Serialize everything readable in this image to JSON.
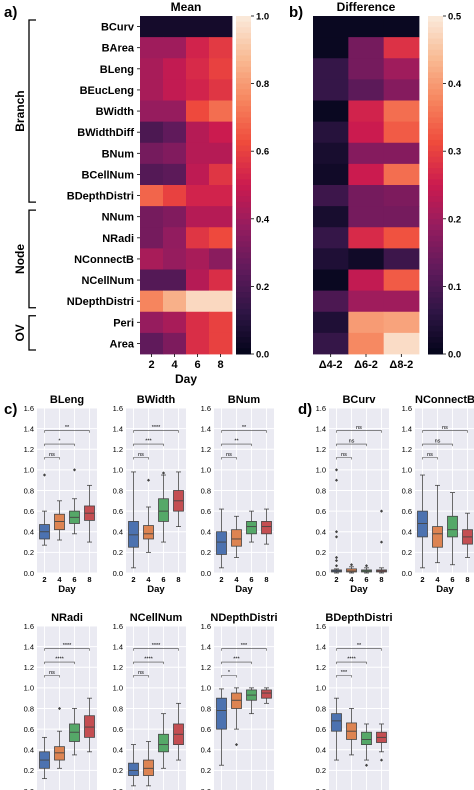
{
  "panel_labels": {
    "a": "a)",
    "b": "b)",
    "c": "c)",
    "d": "d)"
  },
  "colormap": [
    "#03051a",
    "#2f1545",
    "#601a5b",
    "#941c5f",
    "#cb1b4f",
    "#ef4b3c",
    "#f6855e",
    "#f9bb94",
    "#faebdd"
  ],
  "box_colors": [
    "#4c72b0",
    "#dd8452",
    "#55a868",
    "#c44e52"
  ],
  "groups": [
    {
      "label": "Branch",
      "first": 0,
      "last": 8
    },
    {
      "label": "Node",
      "first": 9,
      "last": 13
    },
    {
      "label": "OV",
      "first": 14,
      "last": 15
    }
  ],
  "chart_data": [
    {
      "type": "heatmap",
      "title": "Mean",
      "xlabel": "Day",
      "x": [
        "2",
        "4",
        "6",
        "8"
      ],
      "y": [
        "BCurv",
        "BArea",
        "BLeng",
        "BEucLeng",
        "BWidth",
        "BWidthDiff",
        "BNum",
        "BCellNum",
        "BDepthDistri",
        "NNum",
        "NRadi",
        "NConnectB",
        "NCellNum",
        "NDepthDistri",
        "Peri",
        "Area"
      ],
      "zlim": [
        0.0,
        1.0
      ],
      "colorbar_ticks": [
        "0.0",
        "0.2",
        "0.4",
        "0.6",
        "0.8",
        "1.0"
      ],
      "values": [
        [
          0.05,
          0.05,
          0.05,
          0.05
        ],
        [
          0.4,
          0.4,
          0.52,
          0.58
        ],
        [
          0.42,
          0.48,
          0.54,
          0.6
        ],
        [
          0.42,
          0.48,
          0.52,
          0.57
        ],
        [
          0.38,
          0.38,
          0.62,
          0.7
        ],
        [
          0.2,
          0.25,
          0.45,
          0.5
        ],
        [
          0.3,
          0.33,
          0.45,
          0.45
        ],
        [
          0.22,
          0.24,
          0.47,
          0.57
        ],
        [
          0.68,
          0.6,
          0.52,
          0.52
        ],
        [
          0.3,
          0.33,
          0.45,
          0.45
        ],
        [
          0.3,
          0.37,
          0.57,
          0.62
        ],
        [
          0.42,
          0.38,
          0.42,
          0.35
        ],
        [
          0.22,
          0.22,
          0.45,
          0.55
        ],
        [
          0.75,
          0.85,
          0.95,
          0.95
        ],
        [
          0.38,
          0.42,
          0.55,
          0.6
        ],
        [
          0.25,
          0.32,
          0.55,
          0.6
        ]
      ]
    },
    {
      "type": "heatmap",
      "title": "Difference",
      "x": [
        "Δ4-2",
        "Δ6-2",
        "Δ8-2"
      ],
      "zlim": [
        0.0,
        0.5
      ],
      "colorbar_ticks": [
        "0.0",
        "0.1",
        "0.2",
        "0.3",
        "0.4",
        "0.5"
      ],
      "values": [
        [
          0.01,
          0.01,
          0.01
        ],
        [
          0.01,
          0.15,
          0.28
        ],
        [
          0.07,
          0.15,
          0.2
        ],
        [
          0.07,
          0.12,
          0.17
        ],
        [
          0.01,
          0.26,
          0.35
        ],
        [
          0.05,
          0.25,
          0.33
        ],
        [
          0.03,
          0.17,
          0.17
        ],
        [
          0.02,
          0.25,
          0.35
        ],
        [
          0.08,
          0.15,
          0.16
        ],
        [
          0.03,
          0.15,
          0.15
        ],
        [
          0.07,
          0.27,
          0.32
        ],
        [
          0.04,
          0.02,
          0.08
        ],
        [
          0.01,
          0.24,
          0.33
        ],
        [
          0.1,
          0.2,
          0.2
        ],
        [
          0.04,
          0.4,
          0.41
        ],
        [
          0.07,
          0.38,
          0.48
        ]
      ]
    },
    {
      "type": "box",
      "panel": "c",
      "title": "BLeng",
      "categories": [
        "2",
        "4",
        "6",
        "8"
      ],
      "xlabel": "Day",
      "ylim": [
        0.0,
        1.6
      ],
      "yticks": [
        "0.0",
        "0.2",
        "0.4",
        "0.6",
        "0.8",
        "1.0",
        "1.2",
        "1.4",
        "1.6"
      ],
      "boxes": [
        {
          "whislo": 0.27,
          "q1": 0.33,
          "med": 0.4,
          "q3": 0.47,
          "whishi": 0.6,
          "fliers": [
            0.95
          ]
        },
        {
          "whislo": 0.32,
          "q1": 0.42,
          "med": 0.5,
          "q3": 0.57,
          "whishi": 0.7,
          "fliers": []
        },
        {
          "whislo": 0.38,
          "q1": 0.48,
          "med": 0.54,
          "q3": 0.6,
          "whishi": 0.72,
          "fliers": [
            1.0
          ]
        },
        {
          "whislo": 0.3,
          "q1": 0.51,
          "med": 0.58,
          "q3": 0.65,
          "whishi": 0.85,
          "fliers": []
        }
      ],
      "annotations": [
        {
          "from": 0,
          "to": 1,
          "text": "ns"
        },
        {
          "from": 0,
          "to": 2,
          "text": "*"
        },
        {
          "from": 0,
          "to": 3,
          "text": "**"
        }
      ]
    },
    {
      "type": "box",
      "panel": "c",
      "title": "BWidth",
      "categories": [
        "2",
        "4",
        "6",
        "8"
      ],
      "xlabel": "Day",
      "ylim": [
        0.0,
        1.6
      ],
      "yticks": [
        "0.0",
        "0.2",
        "0.4",
        "0.6",
        "0.8",
        "1.0",
        "1.2",
        "1.4",
        "1.6"
      ],
      "boxes": [
        {
          "whislo": 0.05,
          "q1": 0.25,
          "med": 0.37,
          "q3": 0.5,
          "whishi": 0.98,
          "fliers": []
        },
        {
          "whislo": 0.2,
          "q1": 0.33,
          "med": 0.38,
          "q3": 0.46,
          "whishi": 0.64,
          "fliers": [
            0.9
          ]
        },
        {
          "whislo": 0.3,
          "q1": 0.5,
          "med": 0.6,
          "q3": 0.72,
          "whishi": 0.95,
          "fliers": [
            0.97
          ]
        },
        {
          "whislo": 0.45,
          "q1": 0.6,
          "med": 0.7,
          "q3": 0.8,
          "whishi": 0.98,
          "fliers": []
        }
      ],
      "annotations": [
        {
          "from": 0,
          "to": 1,
          "text": "ns"
        },
        {
          "from": 0,
          "to": 2,
          "text": "***"
        },
        {
          "from": 0,
          "to": 3,
          "text": "****"
        }
      ]
    },
    {
      "type": "box",
      "panel": "c",
      "title": "BNum",
      "categories": [
        "2",
        "4",
        "6",
        "8"
      ],
      "xlabel": "Day",
      "ylim": [
        0.0,
        1.6
      ],
      "yticks": [
        "0.0",
        "0.2",
        "0.4",
        "0.6",
        "0.8",
        "1.0",
        "1.2",
        "1.4",
        "1.6"
      ],
      "boxes": [
        {
          "whislo": 0.05,
          "q1": 0.18,
          "med": 0.3,
          "q3": 0.4,
          "whishi": 0.62,
          "fliers": []
        },
        {
          "whislo": 0.15,
          "q1": 0.26,
          "med": 0.33,
          "q3": 0.42,
          "whishi": 0.55,
          "fliers": []
        },
        {
          "whislo": 0.3,
          "q1": 0.38,
          "med": 0.45,
          "q3": 0.5,
          "whishi": 0.6,
          "fliers": []
        },
        {
          "whislo": 0.28,
          "q1": 0.38,
          "med": 0.45,
          "q3": 0.5,
          "whishi": 0.62,
          "fliers": []
        }
      ],
      "annotations": [
        {
          "from": 0,
          "to": 1,
          "text": "ns"
        },
        {
          "from": 0,
          "to": 2,
          "text": "**"
        },
        {
          "from": 0,
          "to": 3,
          "text": "**"
        }
      ]
    },
    {
      "type": "box",
      "panel": "d",
      "title": "BCurv",
      "categories": [
        "2",
        "4",
        "6",
        "8"
      ],
      "xlabel": "Day",
      "ylim": [
        0.0,
        1.6
      ],
      "yticks": [
        "0.0",
        "0.2",
        "0.4",
        "0.6",
        "0.8",
        "1.0",
        "1.2",
        "1.4",
        "1.6"
      ],
      "boxes": [
        {
          "whislo": 0.0,
          "q1": 0.01,
          "med": 0.02,
          "q3": 0.03,
          "whishi": 0.04,
          "fliers": [
            0.07,
            0.12,
            0.15,
            0.35,
            0.4,
            0.9,
            1.0
          ]
        },
        {
          "whislo": 0.0,
          "q1": 0.01,
          "med": 0.02,
          "q3": 0.04,
          "whishi": 0.06,
          "fliers": [
            0.08
          ]
        },
        {
          "whislo": 0.0,
          "q1": 0.01,
          "med": 0.02,
          "q3": 0.03,
          "whishi": 0.05,
          "fliers": [
            0.07
          ]
        },
        {
          "whislo": 0.0,
          "q1": 0.01,
          "med": 0.02,
          "q3": 0.03,
          "whishi": 0.05,
          "fliers": [
            0.3,
            0.6
          ]
        }
      ],
      "annotations": [
        {
          "from": 0,
          "to": 1,
          "text": "ns"
        },
        {
          "from": 0,
          "to": 2,
          "text": "ns"
        },
        {
          "from": 0,
          "to": 3,
          "text": "ns"
        }
      ]
    },
    {
      "type": "box",
      "panel": "d",
      "title": "NConnectB",
      "categories": [
        "2",
        "4",
        "6",
        "8"
      ],
      "xlabel": "Day",
      "ylim": [
        0.0,
        1.6
      ],
      "yticks": [
        "0.0",
        "0.2",
        "0.4",
        "0.6",
        "0.8",
        "1.0",
        "1.2",
        "1.4",
        "1.6"
      ],
      "boxes": [
        {
          "whislo": 0.05,
          "q1": 0.35,
          "med": 0.48,
          "q3": 0.6,
          "whishi": 0.95,
          "fliers": []
        },
        {
          "whislo": 0.1,
          "q1": 0.25,
          "med": 0.38,
          "q3": 0.45,
          "whishi": 0.85,
          "fliers": []
        },
        {
          "whislo": 0.08,
          "q1": 0.35,
          "med": 0.42,
          "q3": 0.55,
          "whishi": 0.78,
          "fliers": []
        },
        {
          "whislo": 0.15,
          "q1": 0.28,
          "med": 0.35,
          "q3": 0.42,
          "whishi": 0.58,
          "fliers": []
        }
      ],
      "annotations": [
        {
          "from": 0,
          "to": 1,
          "text": "ns"
        },
        {
          "from": 0,
          "to": 2,
          "text": "ns"
        },
        {
          "from": 0,
          "to": 3,
          "text": "ns"
        }
      ]
    },
    {
      "type": "box",
      "panel": "c",
      "title": "NRadi",
      "categories": [
        "2",
        "4",
        "6",
        "8"
      ],
      "xlabel": "Day",
      "ylim": [
        0.0,
        1.6
      ],
      "yticks": [
        "0.0",
        "0.2",
        "0.4",
        "0.6",
        "0.8",
        "1.0",
        "1.2",
        "1.4",
        "1.6"
      ],
      "boxes": [
        {
          "whislo": 0.12,
          "q1": 0.22,
          "med": 0.3,
          "q3": 0.38,
          "whishi": 0.52,
          "fliers": []
        },
        {
          "whislo": 0.22,
          "q1": 0.3,
          "med": 0.37,
          "q3": 0.43,
          "whishi": 0.58,
          "fliers": [
            0.8
          ]
        },
        {
          "whislo": 0.35,
          "q1": 0.48,
          "med": 0.57,
          "q3": 0.65,
          "whishi": 0.8,
          "fliers": []
        },
        {
          "whislo": 0.38,
          "q1": 0.52,
          "med": 0.62,
          "q3": 0.73,
          "whishi": 0.9,
          "fliers": []
        }
      ],
      "annotations": [
        {
          "from": 0,
          "to": 1,
          "text": "ns"
        },
        {
          "from": 0,
          "to": 2,
          "text": "****"
        },
        {
          "from": 0,
          "to": 3,
          "text": "****"
        }
      ]
    },
    {
      "type": "box",
      "panel": "c",
      "title": "NCellNum",
      "categories": [
        "2",
        "4",
        "6",
        "8"
      ],
      "xlabel": "Day",
      "ylim": [
        0.0,
        1.6
      ],
      "yticks": [
        "0.0",
        "0.2",
        "0.4",
        "0.6",
        "0.8",
        "1.0",
        "1.2",
        "1.4",
        "1.6"
      ],
      "boxes": [
        {
          "whislo": 0.05,
          "q1": 0.15,
          "med": 0.2,
          "q3": 0.27,
          "whishi": 0.45,
          "fliers": []
        },
        {
          "whislo": 0.05,
          "q1": 0.15,
          "med": 0.22,
          "q3": 0.3,
          "whishi": 0.48,
          "fliers": []
        },
        {
          "whislo": 0.22,
          "q1": 0.38,
          "med": 0.45,
          "q3": 0.55,
          "whishi": 0.75,
          "fliers": []
        },
        {
          "whislo": 0.3,
          "q1": 0.45,
          "med": 0.55,
          "q3": 0.65,
          "whishi": 0.85,
          "fliers": []
        }
      ],
      "annotations": [
        {
          "from": 0,
          "to": 1,
          "text": "ns"
        },
        {
          "from": 0,
          "to": 2,
          "text": "****"
        },
        {
          "from": 0,
          "to": 3,
          "text": "****"
        }
      ]
    },
    {
      "type": "box",
      "panel": "c",
      "title": "NDepthDistri",
      "categories": [
        "2",
        "4",
        "6",
        "8"
      ],
      "xlabel": "Day",
      "ylim": [
        0.0,
        1.6
      ],
      "yticks": [
        "0.0",
        "0.2",
        "0.4",
        "0.6",
        "0.8",
        "1.0",
        "1.2",
        "1.4",
        "1.6"
      ],
      "boxes": [
        {
          "whislo": 0.25,
          "q1": 0.6,
          "med": 0.78,
          "q3": 0.9,
          "whishi": 0.99,
          "fliers": []
        },
        {
          "whislo": 0.6,
          "q1": 0.8,
          "med": 0.88,
          "q3": 0.95,
          "whishi": 1.0,
          "fliers": [
            0.45
          ]
        },
        {
          "whislo": 0.75,
          "q1": 0.88,
          "med": 0.93,
          "q3": 0.98,
          "whishi": 1.0,
          "fliers": []
        },
        {
          "whislo": 0.85,
          "q1": 0.9,
          "med": 0.95,
          "q3": 0.98,
          "whishi": 1.0,
          "fliers": []
        }
      ],
      "annotations": [
        {
          "from": 0,
          "to": 1,
          "text": "*"
        },
        {
          "from": 0,
          "to": 2,
          "text": "***"
        },
        {
          "from": 0,
          "to": 3,
          "text": "***"
        }
      ]
    },
    {
      "type": "box",
      "panel": "d",
      "title": "BDepthDistri",
      "categories": [
        "2",
        "4",
        "6",
        "8"
      ],
      "xlabel": "",
      "ylim": [
        0.0,
        1.6
      ],
      "yticks": [
        "0.0",
        "0.2",
        "0.4",
        "0.6",
        "0.8",
        "1.0",
        "1.2",
        "1.4",
        "1.6"
      ],
      "boxes": [
        {
          "whislo": 0.3,
          "q1": 0.58,
          "med": 0.68,
          "q3": 0.75,
          "whishi": 0.9,
          "fliers": []
        },
        {
          "whislo": 0.35,
          "q1": 0.5,
          "med": 0.58,
          "q3": 0.66,
          "whishi": 0.8,
          "fliers": []
        },
        {
          "whislo": 0.3,
          "q1": 0.45,
          "med": 0.5,
          "q3": 0.57,
          "whishi": 0.65,
          "fliers": [
            0.25
          ]
        },
        {
          "whislo": 0.38,
          "q1": 0.47,
          "med": 0.52,
          "q3": 0.57,
          "whishi": 0.65,
          "fliers": [
            0.3
          ]
        }
      ],
      "annotations": [
        {
          "from": 0,
          "to": 1,
          "text": "***"
        },
        {
          "from": 0,
          "to": 2,
          "text": "****"
        },
        {
          "from": 0,
          "to": 3,
          "text": "**"
        }
      ]
    }
  ]
}
